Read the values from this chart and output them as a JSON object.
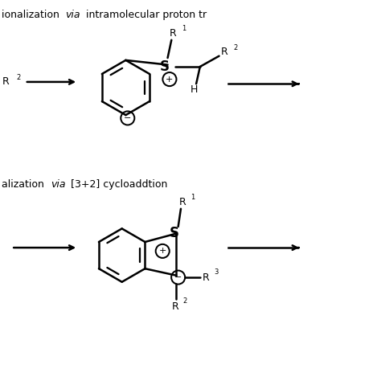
{
  "bg_color": "#ffffff",
  "text_color": "#000000",
  "line_color": "#000000",
  "line_width": 1.8,
  "title1": "ionalization ",
  "title1_italic": "via",
  "title1_end": " intramolecular proton tr",
  "title2_start": "alization ",
  "title2_italic": "via",
  "title2_end": " [3+2] cycloaddtion",
  "fig_width": 4.74,
  "fig_height": 4.74,
  "dpi": 100
}
